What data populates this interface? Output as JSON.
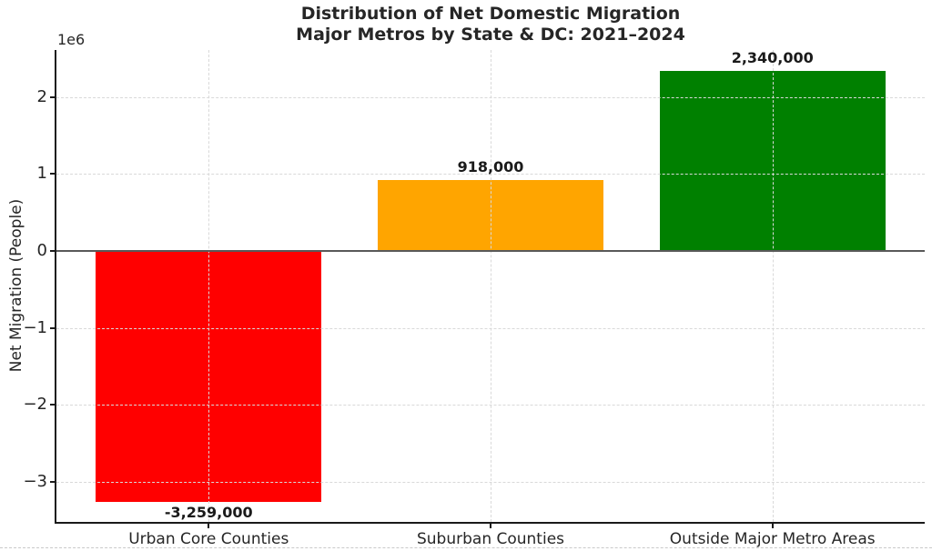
{
  "chart_data": {
    "type": "bar",
    "title_line1": "Distribution of Net Domestic Migration",
    "title_line2": "Major Metros by State & DC: 2021–2024",
    "categories": [
      "Urban Core Counties",
      "Suburban Counties",
      "Outside Major Metro Areas"
    ],
    "values": [
      -3259000,
      918000,
      2340000
    ],
    "value_labels": [
      "-3,259,000",
      "918,000",
      "2,340,000"
    ],
    "bar_colors": [
      "#ff0000",
      "#ffa500",
      "#008000"
    ],
    "bar_width_fraction": 0.8,
    "xlabel": "",
    "ylabel": "Net Migration (People)",
    "offset_text": "1e6",
    "yticks": [
      -3000000,
      -2000000,
      -1000000,
      0,
      1000000,
      2000000
    ],
    "ytick_labels": [
      "−3",
      "−2",
      "−1",
      "0",
      "1",
      "2"
    ],
    "ylim": [
      -3523000,
      2613000
    ],
    "xlim": [
      -0.54,
      2.54
    ],
    "grid": true,
    "grid_style": "dashed",
    "grid_above_bars": true,
    "zero_line": true,
    "legend": "none"
  },
  "colors": {
    "grid": "#d9d9d9",
    "spine": "#1a1a1a",
    "zero_line": "#595959",
    "text": "#262626",
    "background": "#ffffff"
  }
}
